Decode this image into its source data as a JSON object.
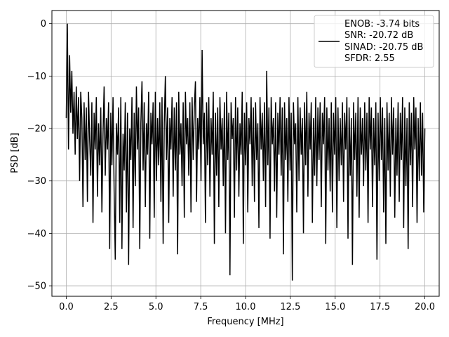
{
  "chart_data": {
    "type": "line",
    "xlabel": "Frequency [MHz]",
    "ylabel": "PSD [dB]",
    "xlim": [
      -0.8,
      20.8
    ],
    "ylim": [
      -52,
      2.5
    ],
    "xticks": [
      0.0,
      2.5,
      5.0,
      7.5,
      10.0,
      12.5,
      15.0,
      17.5,
      20.0
    ],
    "xtick_labels": [
      "0.0",
      "2.5",
      "5.0",
      "7.5",
      "10.0",
      "12.5",
      "15.0",
      "17.5",
      "20.0"
    ],
    "yticks": [
      0,
      -10,
      -20,
      -30,
      -40,
      -50
    ],
    "ytick_labels": [
      "0",
      "−10",
      "−20",
      "−30",
      "−40",
      "−50"
    ],
    "grid": true,
    "legend_position": "top-right",
    "series": [
      {
        "name": "ENOB: -3.74 bits\nSNR: -20.72 dB\nSINAD: -20.75 dB\nSFDR: 2.55",
        "legend_lines": [
          "ENOB: -3.74 bits",
          "SNR: -20.72 dB",
          "SINAD: -20.75 dB",
          "SFDR: 2.55"
        ],
        "color": "#000000",
        "x_start": 0.0,
        "x_end": 20.0,
        "y": [
          -18,
          0,
          -24,
          -6,
          -17,
          -9,
          -21,
          -13,
          -25,
          -12,
          -22,
          -14,
          -30,
          -13,
          -18,
          -35,
          -15,
          -26,
          -16,
          -34,
          -13,
          -22,
          -29,
          -15,
          -38,
          -17,
          -24,
          -14,
          -33,
          -19,
          -27,
          -16,
          -36,
          -21,
          -12,
          -29,
          -18,
          -24,
          -15,
          -43,
          -17,
          -27,
          -14,
          -32,
          -45,
          -19,
          -25,
          -16,
          -38,
          -14,
          -43,
          -21,
          -28,
          -15,
          -36,
          -17,
          -46,
          -20,
          -26,
          -14,
          -39,
          -17,
          -31,
          -12,
          -24,
          -16,
          -43,
          -19,
          -11,
          -28,
          -15,
          -35,
          -19,
          -25,
          -13,
          -41,
          -17,
          -23,
          -15,
          -37,
          -13,
          -30,
          -18,
          -27,
          -15,
          -34,
          -14,
          -42,
          -19,
          -10,
          -26,
          -16,
          -38,
          -18,
          -24,
          -14,
          -33,
          -16,
          -28,
          -15,
          -44,
          -13,
          -25,
          -19,
          -31,
          -15,
          -37,
          -13,
          -23,
          -18,
          -29,
          -15,
          -36,
          -14,
          -26,
          -16,
          -11,
          -34,
          -18,
          -24,
          -14,
          -30,
          -5,
          -23,
          -17,
          -38,
          -15,
          -27,
          -14,
          -33,
          -18,
          -25,
          -13,
          -42,
          -17,
          -29,
          -16,
          -35,
          -14,
          -24,
          -18,
          -31,
          -15,
          -40,
          -13,
          -26,
          -17,
          -48,
          -15,
          -22,
          -18,
          -37,
          -14,
          -28,
          -16,
          -33,
          -19,
          -25,
          -13,
          -42,
          -17,
          -27,
          -15,
          -36,
          -18,
          -23,
          -14,
          -31,
          -16,
          -34,
          -15,
          -26,
          -19,
          -39,
          -14,
          -24,
          -17,
          -30,
          -15,
          -35,
          -9,
          -27,
          -16,
          -41,
          -14,
          -23,
          -18,
          -32,
          -15,
          -37,
          -17,
          -25,
          -14,
          -29,
          -16,
          -44,
          -15,
          -26,
          -18,
          -34,
          -14,
          -28,
          -17,
          -49,
          -15,
          -23,
          -19,
          -36,
          -14,
          -30,
          -16,
          -25,
          -18,
          -40,
          -15,
          -27,
          -13,
          -33,
          -17,
          -24,
          -15,
          -38,
          -18,
          -29,
          -14,
          -31,
          -16,
          -26,
          -15,
          -35,
          -17,
          -23,
          -14,
          -42,
          -16,
          -28,
          -18,
          -32,
          -15,
          -36,
          -17,
          -25,
          -14,
          -39,
          -16,
          -30,
          -18,
          -27,
          -15,
          -34,
          -17,
          -24,
          -14,
          -41,
          -16,
          -29,
          -18,
          -46,
          -15,
          -26,
          -17,
          -33,
          -14,
          -37,
          -16,
          -25,
          -18,
          -31,
          -15,
          -28,
          -17,
          -38,
          -14,
          -24,
          -16,
          -35,
          -18,
          -27,
          -15,
          -45,
          -17,
          -30,
          -14,
          -26,
          -16,
          -36,
          -18,
          -42,
          -15,
          -28,
          -17,
          -33,
          -14,
          -25,
          -16,
          -37,
          -18,
          -29,
          -15,
          -34,
          -17,
          -26,
          -14,
          -39,
          -16,
          -31,
          -18,
          -43,
          -15,
          -27,
          -17,
          -35,
          -14,
          -24,
          -16,
          -38,
          -18,
          -30,
          -15,
          -29,
          -17,
          -36,
          -20
        ]
      }
    ]
  }
}
